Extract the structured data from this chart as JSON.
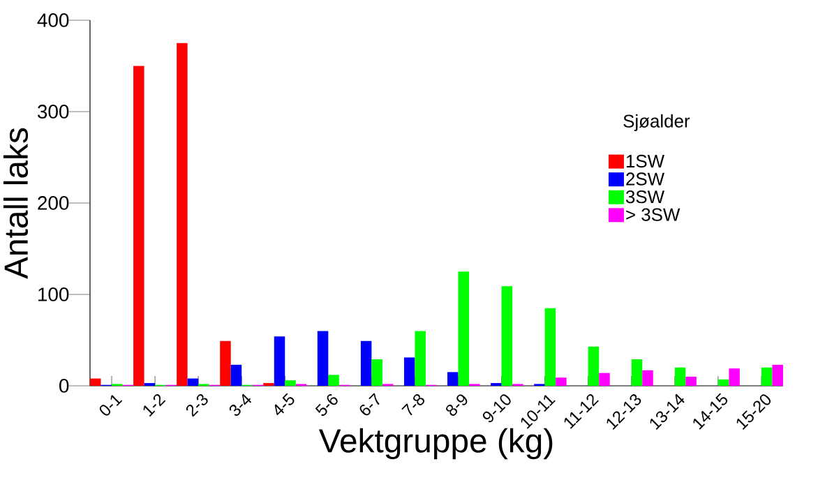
{
  "chart_data": {
    "type": "bar",
    "xlabel": "Vektgruppe (kg)",
    "ylabel": "Antall laks",
    "legend_title": "Sjøalder",
    "categories": [
      "0-1",
      "1-2",
      "2-3",
      "3-4",
      "4-5",
      "5-6",
      "6-7",
      "7-8",
      "8-9",
      "9-10",
      "10-11",
      "11-12",
      "12-13",
      "13-14",
      "14-15",
      "15-20"
    ],
    "series": [
      {
        "name": "1SW",
        "color": "#ff0000",
        "values": [
          8,
          350,
          375,
          49,
          3,
          0,
          0,
          0,
          0,
          0,
          0,
          0,
          0,
          0,
          0,
          0
        ]
      },
      {
        "name": "2SW",
        "color": "#0000ff",
        "values": [
          1,
          3,
          8,
          23,
          54,
          60,
          49,
          31,
          15,
          3,
          2,
          0,
          0,
          0,
          0,
          0
        ]
      },
      {
        "name": "3SW",
        "color": "#00ff00",
        "values": [
          2,
          1,
          2,
          1,
          6,
          12,
          29,
          60,
          125,
          109,
          85,
          43,
          29,
          20,
          7,
          20
        ]
      },
      {
        "name": "> 3SW",
        "color": "#ff00ff",
        "values": [
          1,
          1,
          1,
          1,
          2,
          1,
          2,
          1,
          2,
          2,
          9,
          14,
          17,
          10,
          19,
          23
        ]
      }
    ],
    "ylim": [
      0,
      400
    ],
    "yticks": [
      0,
      100,
      200,
      300,
      400
    ],
    "legend": "right"
  }
}
